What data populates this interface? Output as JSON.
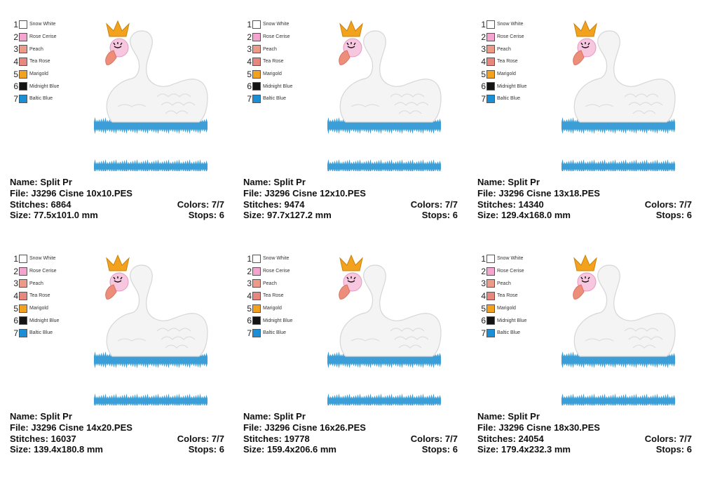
{
  "palette": [
    {
      "num": "1",
      "name": "Snow White",
      "color": "#ffffff"
    },
    {
      "num": "2",
      "name": "Rose Cerise",
      "color": "#f5a3cf"
    },
    {
      "num": "3",
      "name": "Peach",
      "color": "#ee9a88"
    },
    {
      "num": "4",
      "name": "Tea Rose",
      "color": "#e8877e"
    },
    {
      "num": "5",
      "name": "Marigold",
      "color": "#f2a21d"
    },
    {
      "num": "6",
      "name": "Midnight Blue",
      "color": "#141414"
    },
    {
      "num": "7",
      "name": "Baltic Blue",
      "color": "#1a8fd6"
    }
  ],
  "labels": {
    "name": "Name:",
    "file": "File:",
    "stitches": "Stitches:",
    "size": "Size:",
    "colors": "Colors:",
    "stops": "Stops:"
  },
  "designs": [
    {
      "name": "Split Pr",
      "file": "J3296 Cisne 10x10.PES",
      "stitches": "6864",
      "size": "77.5x101.0 mm",
      "colors": "7/7",
      "stops": "6"
    },
    {
      "name": "Split Pr",
      "file": "J3296 Cisne 12x10.PES",
      "stitches": "9474",
      "size": "97.7x127.2 mm",
      "colors": "7/7",
      "stops": "6"
    },
    {
      "name": "Split Pr",
      "file": "J3296 Cisne 13x18.PES",
      "stitches": "14340",
      "size": "129.4x168.0 mm",
      "colors": "7/7",
      "stops": "6"
    },
    {
      "name": "Split Pr",
      "file": "J3296 Cisne 14x20.PES",
      "stitches": "16037",
      "size": "139.4x180.8 mm",
      "colors": "7/7",
      "stops": "6"
    },
    {
      "name": "Split Pr",
      "file": "J3296 Cisne 16x26.PES",
      "stitches": "19778",
      "size": "159.4x206.6 mm",
      "colors": "7/7",
      "stops": "6"
    },
    {
      "name": "Split Pr",
      "file": "J3296 Cisne 18x30.PES",
      "stitches": "24054",
      "size": "179.4x232.3 mm",
      "colors": "7/7",
      "stops": "6"
    }
  ],
  "icons": {
    "design": "swan-with-crown-icon"
  }
}
